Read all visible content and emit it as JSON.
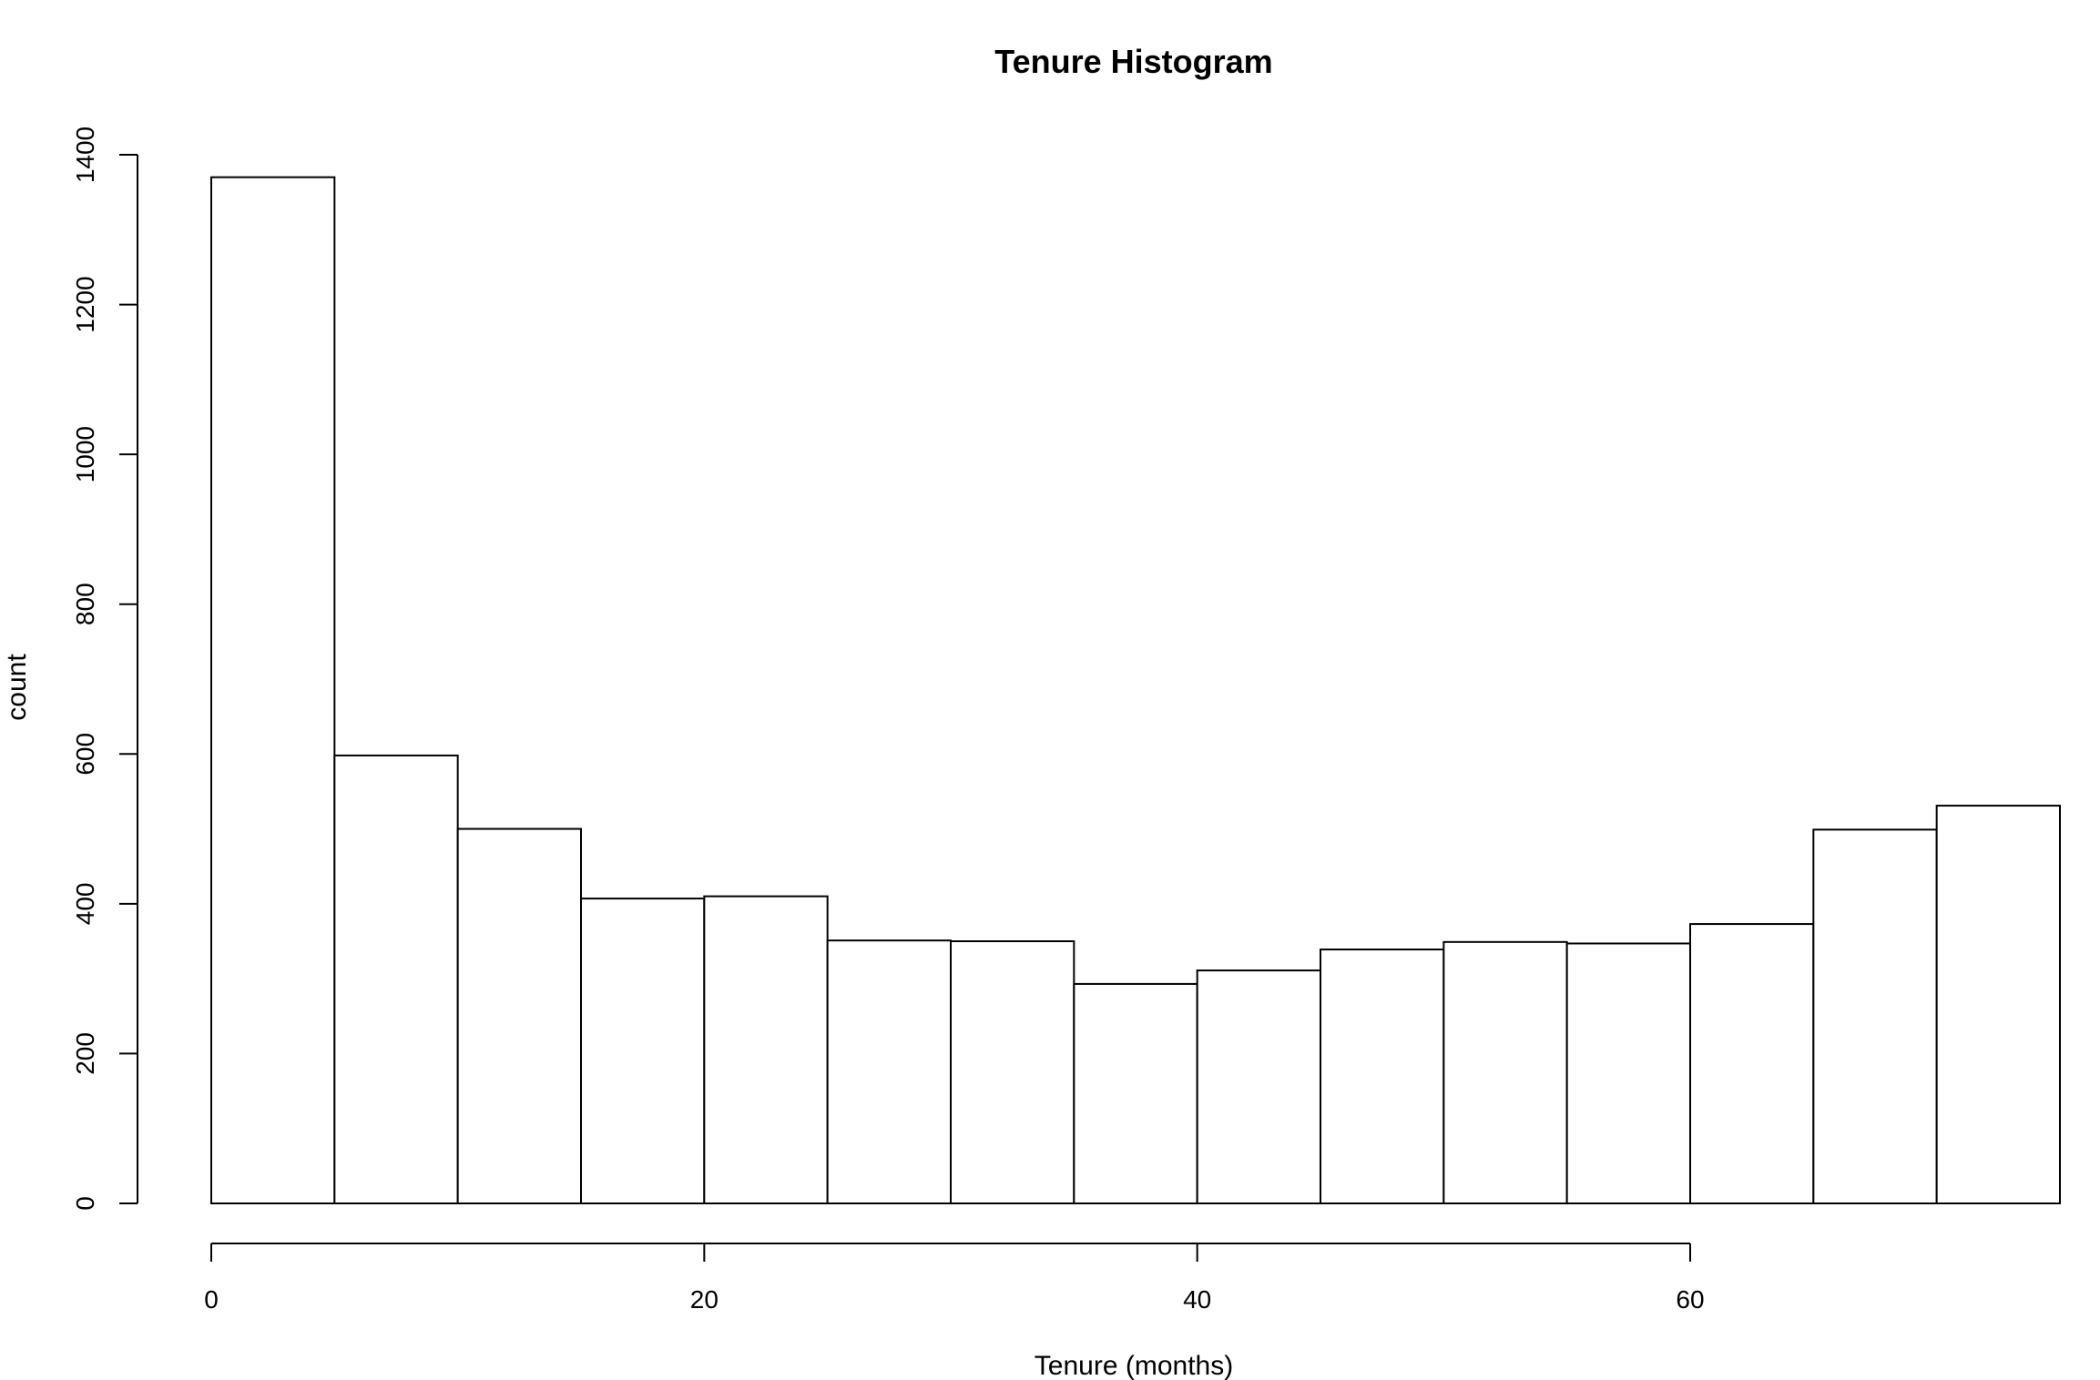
{
  "chart_data": {
    "type": "bar",
    "title": "Tenure Histogram",
    "xlabel": "Tenure (months)",
    "ylabel": "count",
    "bin_edges": [
      0,
      5,
      10,
      15,
      20,
      25,
      30,
      35,
      40,
      45,
      50,
      55,
      60,
      65,
      70,
      75
    ],
    "values": [
      1370,
      598,
      500,
      407,
      410,
      351,
      350,
      293,
      311,
      339,
      349,
      347,
      373,
      499,
      531
    ],
    "xlim": [
      0,
      75
    ],
    "ylim": [
      0,
      1400
    ],
    "x_ticks": [
      0,
      20,
      40,
      60
    ],
    "x_tick_labels": [
      "0",
      "20",
      "40",
      "60"
    ],
    "y_ticks": [
      0,
      200,
      400,
      600,
      800,
      1000,
      1200,
      1400
    ],
    "y_tick_labels": [
      "0",
      "200",
      "400",
      "600",
      "800",
      "1000",
      "1200",
      "1400"
    ],
    "grid": false,
    "bar_fill": "#ffffff",
    "bar_stroke": "#000000"
  }
}
